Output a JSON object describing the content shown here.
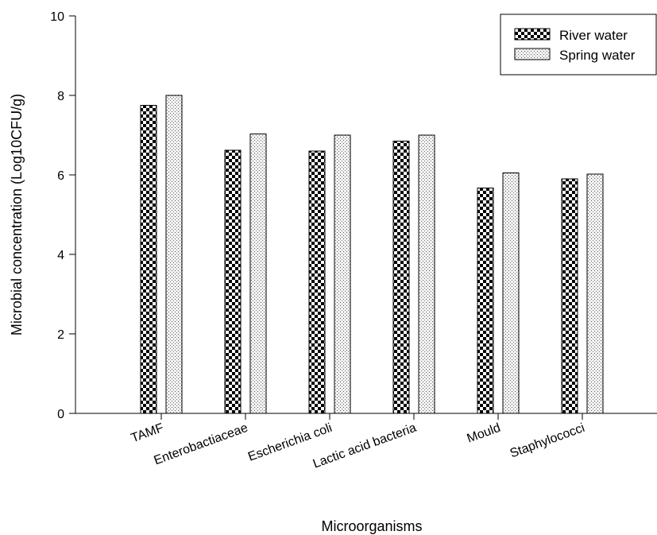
{
  "chart_data": {
    "type": "bar",
    "title": "",
    "xlabel": "Microorganisms",
    "ylabel": "Microbial concentration (Log10CFU/g)",
    "ylim": [
      0,
      10
    ],
    "yticks": [
      "0",
      "2",
      "4",
      "6",
      "8",
      "10"
    ],
    "categories": [
      "TAMF",
      "Enterobactiaceae",
      "Escherichia coli",
      "Lactic acid bacteria",
      "Mould",
      "Staphylococci"
    ],
    "series": [
      {
        "name": "River water",
        "values": [
          7.75,
          6.62,
          6.6,
          6.85,
          5.67,
          5.9
        ],
        "pattern": "checker-dark"
      },
      {
        "name": "Spring water",
        "values": [
          8.0,
          7.03,
          7.0,
          7.0,
          6.05,
          6.02
        ],
        "pattern": "dotted-light"
      }
    ],
    "legend_position": "top-right",
    "grid": false
  }
}
